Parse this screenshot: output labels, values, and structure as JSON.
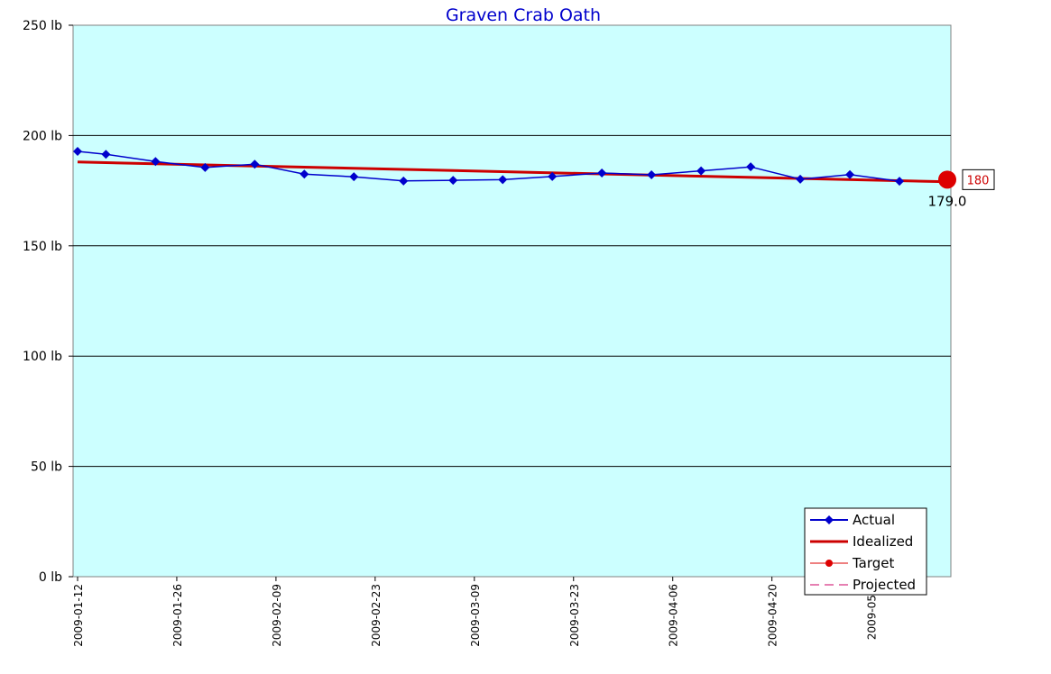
{
  "chart_data": {
    "type": "line",
    "title": "Graven Crab Oath",
    "xlabel": "",
    "ylabel": "",
    "y_unit": "lb",
    "ylim": [
      0,
      250
    ],
    "y_ticks": [
      {
        "value": 0,
        "label": "0 lb"
      },
      {
        "value": 50,
        "label": "50 lb"
      },
      {
        "value": 100,
        "label": "100 lb"
      },
      {
        "value": 150,
        "label": "150 lb"
      },
      {
        "value": 200,
        "label": "200 lb"
      },
      {
        "value": 250,
        "label": "250 lb"
      }
    ],
    "xlim": [
      "2009-01-12",
      "2009-05-15"
    ],
    "x_ticks": [
      "2009-01-12",
      "2009-01-26",
      "2009-02-09",
      "2009-02-23",
      "2009-03-09",
      "2009-03-23",
      "2009-04-06",
      "2009-04-20",
      "2009-05-0"
    ],
    "x_tick_dates": [
      "2009-01-12",
      "2009-01-26",
      "2009-02-09",
      "2009-02-23",
      "2009-03-09",
      "2009-03-23",
      "2009-04-06",
      "2009-04-20",
      "2009-05-04"
    ],
    "grid": "horizontal",
    "plot_background": "#ccffff",
    "legend_position": "bottom-right",
    "series": [
      {
        "name": "Actual",
        "color": "#0000cc",
        "marker": "diamond",
        "x": [
          "2009-01-12",
          "2009-01-16",
          "2009-01-23",
          "2009-01-30",
          "2009-02-06",
          "2009-02-13",
          "2009-02-20",
          "2009-02-27",
          "2009-03-06",
          "2009-03-13",
          "2009-03-20",
          "2009-03-27",
          "2009-04-03",
          "2009-04-10",
          "2009-04-17",
          "2009-04-24",
          "2009-05-01",
          "2009-05-08"
        ],
        "values": [
          192.8,
          191.5,
          188.2,
          185.5,
          187.0,
          182.5,
          181.3,
          179.4,
          179.7,
          180.0,
          181.4,
          183.0,
          182.2,
          184.0,
          185.8,
          180.2,
          182.3,
          179.3
        ]
      },
      {
        "name": "Idealized",
        "color": "#cc0000",
        "marker": "none",
        "x": [
          "2009-01-12",
          "2009-05-15"
        ],
        "values": [
          188.0,
          179.0
        ]
      },
      {
        "name": "Target",
        "color": "#dd0000",
        "marker": "circle",
        "x": [
          "2009-05-15"
        ],
        "values": [
          180
        ]
      },
      {
        "name": "Projected",
        "color": "#cc0066",
        "marker": "none",
        "dashed": true,
        "x": [],
        "values": []
      }
    ],
    "annotations": [
      {
        "text": "180",
        "boxed": true,
        "color": "#cc0000"
      },
      {
        "text": "179.0",
        "color": "#000000"
      }
    ]
  }
}
